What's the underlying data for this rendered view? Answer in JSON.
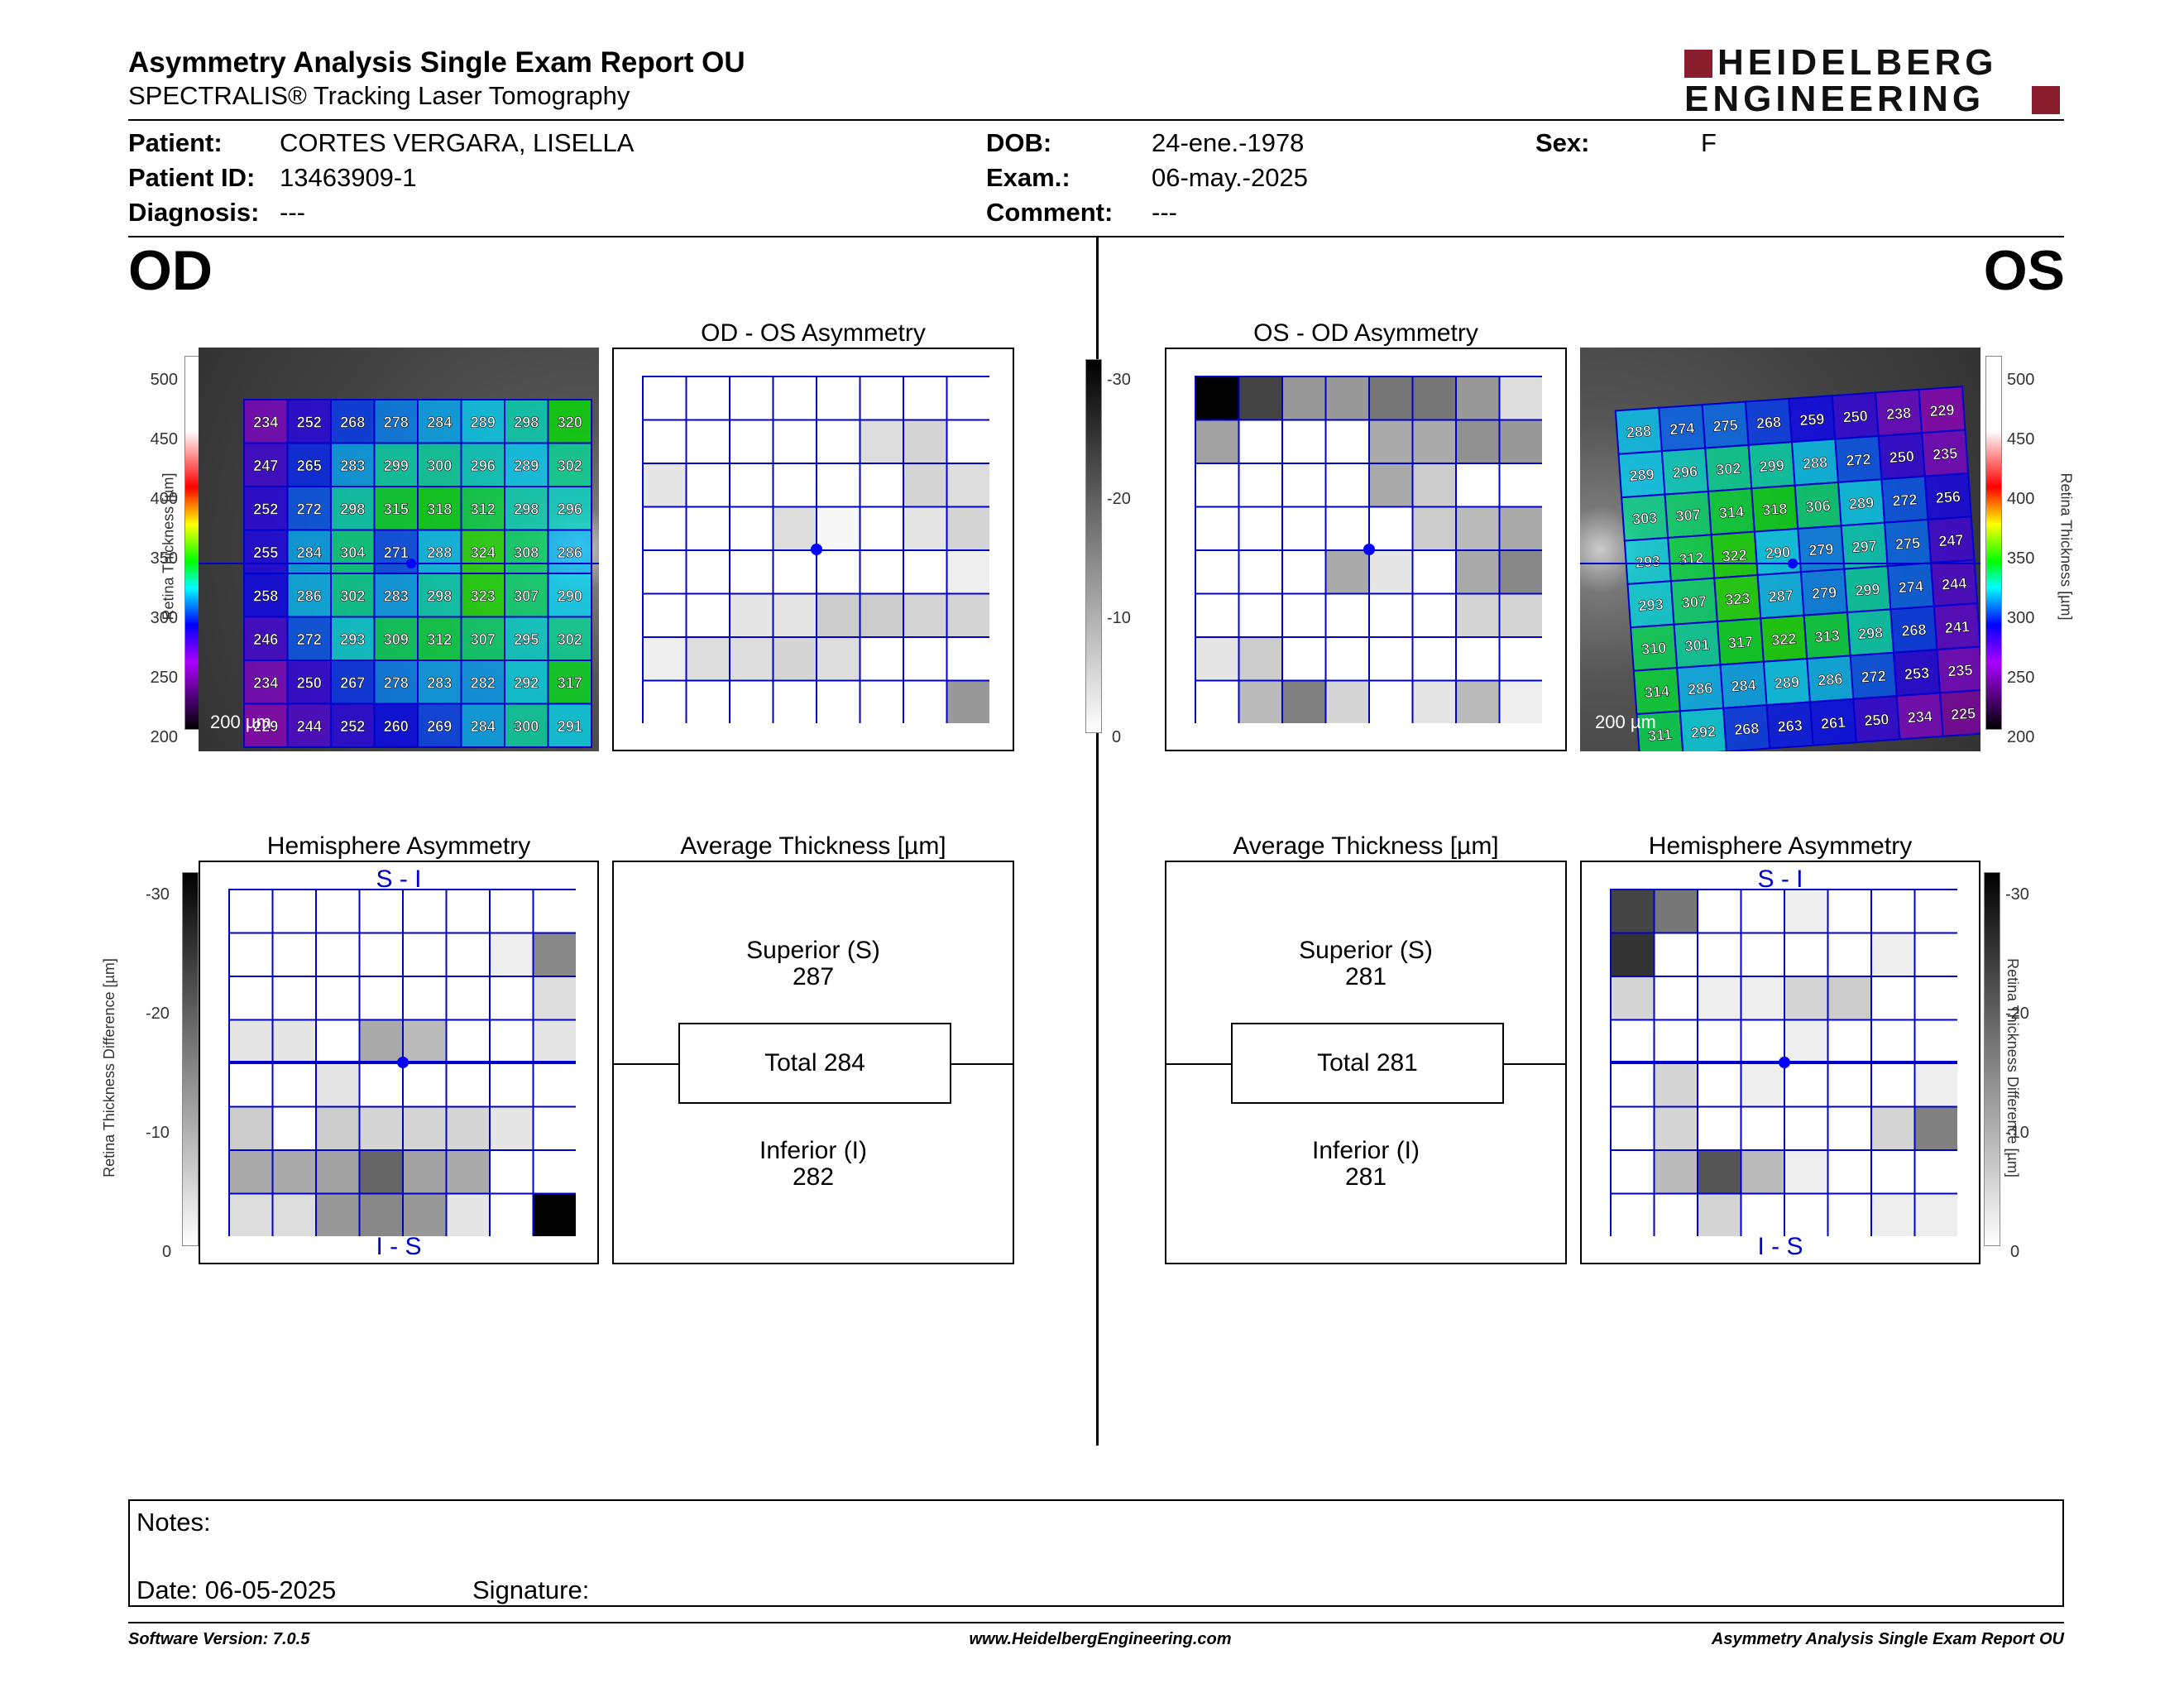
{
  "header": {
    "title": "Asymmetry Analysis Single Exam Report OU",
    "subtitle": "SPECTRALIS® Tracking Laser Tomography",
    "logo_line1": "HEIDELBERG",
    "logo_line2": "ENGINEERING"
  },
  "patient": {
    "patient_label": "Patient:",
    "patient_value": "CORTES VERGARA, LISELLA",
    "id_label": "Patient ID:",
    "id_value": "13463909-1",
    "diagnosis_label": "Diagnosis:",
    "diagnosis_value": "---",
    "dob_label": "DOB:",
    "dob_value": "24-ene.-1978",
    "exam_label": "Exam.:",
    "exam_value": "06-may.-2025",
    "comment_label": "Comment:",
    "comment_value": "---",
    "sex_label": "Sex:",
    "sex_value": "F"
  },
  "eyes": {
    "left": "OD",
    "right": "OS"
  },
  "colors": {
    "grid": "#0000cc",
    "fovea": "#0000ff",
    "gray_scale_max": "#000000",
    "gray_scale_min": "#ffffff"
  },
  "thickness_scale": {
    "label": "Retina Thickness [µm]",
    "ticks": [
      "500",
      "450",
      "400",
      "350",
      "300",
      "250",
      "200"
    ]
  },
  "difference_scale": {
    "label": "Retina Thickness Difference [µm]",
    "ticks": [
      "-30",
      "-20",
      "-10",
      "0"
    ]
  },
  "scale_bar": "200 µm",
  "od": {
    "thickness_grid": [
      [
        234,
        252,
        268,
        278,
        284,
        289,
        298,
        320
      ],
      [
        247,
        265,
        283,
        299,
        300,
        296,
        289,
        302
      ],
      [
        252,
        272,
        298,
        315,
        318,
        312,
        298,
        296
      ],
      [
        255,
        284,
        304,
        271,
        288,
        324,
        308,
        286
      ],
      [
        258,
        286,
        302,
        283,
        298,
        323,
        307,
        290
      ],
      [
        246,
        272,
        293,
        309,
        312,
        307,
        295,
        302
      ],
      [
        234,
        250,
        267,
        278,
        283,
        282,
        292,
        317
      ],
      [
        229,
        244,
        252,
        260,
        269,
        284,
        300,
        291
      ]
    ],
    "asymmetry_title": "OD - OS Asymmetry",
    "asymmetry_grid": [
      [
        0,
        0,
        0,
        0,
        0,
        0,
        0,
        0
      ],
      [
        0,
        0,
        0,
        0,
        0,
        4,
        5,
        0
      ],
      [
        3,
        0,
        0,
        0,
        0,
        0,
        5,
        4
      ],
      [
        0,
        0,
        0,
        4,
        1,
        0,
        3,
        5
      ],
      [
        0,
        0,
        0,
        0,
        0,
        0,
        0,
        2
      ],
      [
        0,
        0,
        3,
        3,
        6,
        6,
        5,
        5
      ],
      [
        2,
        4,
        4,
        5,
        4,
        0,
        0,
        0
      ],
      [
        0,
        0,
        0,
        0,
        0,
        0,
        0,
        12
      ]
    ],
    "hemisphere_title": "Hemisphere Asymmetry",
    "hemisphere_top": "S - I",
    "hemisphere_bottom": "I - S",
    "hemisphere_grid": [
      [
        0,
        0,
        0,
        0,
        0,
        0,
        0,
        0
      ],
      [
        0,
        0,
        0,
        0,
        0,
        0,
        2,
        14
      ],
      [
        0,
        0,
        0,
        0,
        0,
        0,
        0,
        4
      ],
      [
        3,
        3,
        0,
        10,
        8,
        0,
        0,
        3
      ],
      [
        0,
        0,
        3,
        0,
        0,
        0,
        0,
        0
      ],
      [
        6,
        0,
        6,
        5,
        5,
        5,
        3,
        0
      ],
      [
        10,
        10,
        11,
        18,
        11,
        10,
        0,
        0
      ],
      [
        4,
        4,
        12,
        14,
        12,
        3,
        0,
        30
      ]
    ],
    "avg_title": "Average Thickness [µm]",
    "superior_label": "Superior (S)",
    "superior_value": "287",
    "total_label": "Total 284",
    "inferior_label": "Inferior (I)",
    "inferior_value": "282"
  },
  "os": {
    "thickness_grid": [
      [
        288,
        274,
        275,
        268,
        259,
        250,
        238,
        229
      ],
      [
        289,
        296,
        302,
        299,
        288,
        272,
        250,
        235
      ],
      [
        303,
        307,
        314,
        318,
        306,
        289,
        272,
        256
      ],
      [
        293,
        312,
        322,
        290,
        279,
        297,
        275,
        247
      ],
      [
        293,
        307,
        323,
        287,
        279,
        299,
        274,
        244
      ],
      [
        310,
        301,
        317,
        322,
        313,
        298,
        268,
        241
      ],
      [
        314,
        286,
        284,
        289,
        286,
        272,
        253,
        235
      ],
      [
        311,
        292,
        268,
        263,
        261,
        250,
        234,
        225
      ]
    ],
    "asymmetry_title": "OS - OD Asymmetry",
    "asymmetry_grid": [
      [
        30,
        22,
        12,
        12,
        16,
        16,
        12,
        4
      ],
      [
        11,
        0,
        0,
        0,
        10,
        10,
        13,
        12
      ],
      [
        0,
        0,
        0,
        0,
        10,
        6,
        0,
        0
      ],
      [
        0,
        0,
        0,
        0,
        0,
        6,
        8,
        10
      ],
      [
        0,
        0,
        0,
        10,
        3,
        0,
        10,
        14
      ],
      [
        0,
        0,
        0,
        0,
        0,
        0,
        5,
        5
      ],
      [
        3,
        6,
        0,
        0,
        0,
        0,
        0,
        0
      ],
      [
        0,
        8,
        15,
        5,
        0,
        3,
        8,
        2
      ]
    ],
    "hemisphere_title": "Hemisphere Asymmetry",
    "hemisphere_top": "S - I",
    "hemisphere_bottom": "I - S",
    "hemisphere_grid": [
      [
        22,
        16,
        0,
        0,
        2,
        0,
        0,
        0
      ],
      [
        24,
        0,
        0,
        0,
        0,
        0,
        2,
        0
      ],
      [
        5,
        0,
        2,
        2,
        5,
        6,
        0,
        0
      ],
      [
        0,
        0,
        0,
        0,
        2,
        0,
        0,
        0
      ],
      [
        0,
        5,
        0,
        2,
        0,
        0,
        0,
        2
      ],
      [
        0,
        5,
        0,
        0,
        0,
        0,
        5,
        15
      ],
      [
        0,
        8,
        20,
        8,
        2,
        0,
        0,
        0
      ],
      [
        0,
        0,
        5,
        0,
        0,
        0,
        2,
        2
      ]
    ],
    "avg_title": "Average Thickness [µm]",
    "superior_label": "Superior (S)",
    "superior_value": "281",
    "total_label": "Total 281",
    "inferior_label": "Inferior (I)",
    "inferior_value": "281"
  },
  "notes": {
    "notes_label": "Notes:",
    "date_label": "Date: 06-05-2025",
    "signature_label": "Signature:"
  },
  "footer": {
    "left": "Software Version: 7.0.5",
    "center": "www.HeidelbergEngineering.com",
    "right": "Asymmetry Analysis Single Exam Report OU"
  }
}
